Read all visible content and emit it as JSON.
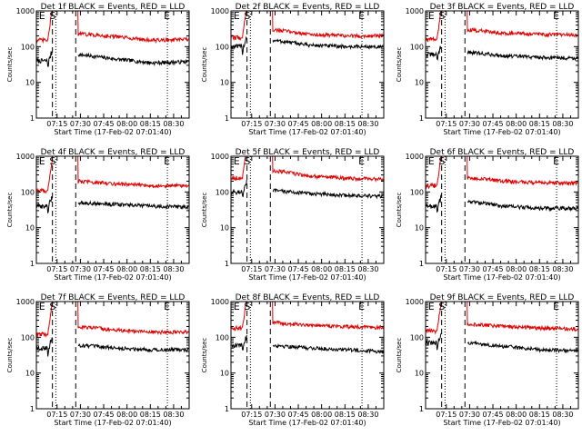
{
  "figure": {
    "x_title": "Start Time (17-Feb-02 07:01:40)",
    "y_title": "Counts/sec",
    "x_ticks": [
      "07:15",
      "07:30",
      "07:45",
      "08:00",
      "08:15",
      "08:30"
    ],
    "y_ticks": [
      "1",
      "10",
      "100",
      "1000"
    ],
    "marker_labels": [
      "E",
      "S",
      "E"
    ],
    "colors": {
      "events": "#000000",
      "lld": "#e00000"
    }
  },
  "chart_data": [
    {
      "type": "line",
      "title": "Det 1f BLACK = Events, RED = LLD",
      "xlabel": "Start Time (17-Feb-02 07:01:40)",
      "ylabel": "Counts/sec",
      "x_range": [
        "07:01:40",
        "08:40:00"
      ],
      "ylim": [
        1,
        1000
      ],
      "y_scale": "log",
      "markers": {
        "E1": "07:05",
        "S": "07:13",
        "dash1": "07:12",
        "dash2": "07:27",
        "E2": "08:26"
      },
      "series": [
        {
          "name": "Events",
          "level_before": 40,
          "level_after": [
            60,
            45,
            35,
            38
          ]
        },
        {
          "name": "LLD",
          "level_before": 150,
          "level_after": [
            230,
            190,
            150,
            160
          ]
        }
      ]
    },
    {
      "type": "line",
      "title": "Det 2f BLACK = Events, RED = LLD",
      "xlabel": "Start Time (17-Feb-02 07:01:40)",
      "ylabel": "Counts/sec",
      "x_range": [
        "07:01:40",
        "08:40:00"
      ],
      "ylim": [
        1,
        1000
      ],
      "y_scale": "log",
      "markers": {
        "E1": "07:05",
        "S": "07:13",
        "dash1": "07:12",
        "dash2": "07:27",
        "E2": "08:26"
      },
      "series": [
        {
          "name": "Events",
          "level_before": 100,
          "level_after": [
            150,
            110,
            100,
            100
          ]
        },
        {
          "name": "LLD",
          "level_before": 180,
          "level_after": [
            300,
            220,
            200,
            200
          ]
        }
      ]
    },
    {
      "type": "line",
      "title": "Det 3f BLACK = Events, RED = LLD",
      "xlabel": "Start Time (17-Feb-02 07:01:40)",
      "ylabel": "Counts/sec",
      "x_range": [
        "07:01:40",
        "08:40:00"
      ],
      "ylim": [
        1,
        1000
      ],
      "y_scale": "log",
      "markers": {
        "E1": "07:05",
        "S": "07:13",
        "dash1": "07:12",
        "dash2": "07:27",
        "E2": "08:26"
      },
      "series": [
        {
          "name": "Events",
          "level_before": 60,
          "level_after": [
            70,
            55,
            50,
            48
          ]
        },
        {
          "name": "LLD",
          "level_before": 160,
          "level_after": [
            300,
            240,
            220,
            210
          ]
        }
      ]
    },
    {
      "type": "line",
      "title": "Det 4f BLACK = Events, RED = LLD",
      "xlabel": "Start Time (17-Feb-02 07:01:40)",
      "ylabel": "Counts/sec",
      "x_range": [
        "07:01:40",
        "08:40:00"
      ],
      "ylim": [
        1,
        1000
      ],
      "y_scale": "log",
      "markers": {
        "E1": "07:05",
        "S": "07:13",
        "dash1": "07:12",
        "dash2": "07:27",
        "E2": "08:26"
      },
      "series": [
        {
          "name": "Events",
          "level_before": 40,
          "level_after": [
            50,
            45,
            40,
            38
          ]
        },
        {
          "name": "LLD",
          "level_before": 110,
          "level_after": [
            200,
            170,
            150,
            150
          ]
        }
      ]
    },
    {
      "type": "line",
      "title": "Det 5f BLACK = Events, RED = LLD",
      "xlabel": "Start Time (17-Feb-02 07:01:40)",
      "ylabel": "Counts/sec",
      "x_range": [
        "07:01:40",
        "08:40:00"
      ],
      "ylim": [
        1,
        1000
      ],
      "y_scale": "log",
      "markers": {
        "E1": "07:05",
        "S": "07:13",
        "dash1": "07:12",
        "dash2": "07:27",
        "E2": "08:26"
      },
      "series": [
        {
          "name": "Events",
          "level_before": 100,
          "level_after": [
            110,
            90,
            80,
            75
          ]
        },
        {
          "name": "LLD",
          "level_before": 250,
          "level_after": [
            400,
            280,
            240,
            230
          ]
        }
      ]
    },
    {
      "type": "line",
      "title": "Det 6f BLACK = Events, RED = LLD",
      "xlabel": "Start Time (17-Feb-02 07:01:40)",
      "ylabel": "Counts/sec",
      "x_range": [
        "07:01:40",
        "08:40:00"
      ],
      "ylim": [
        1,
        1000
      ],
      "y_scale": "log",
      "markers": {
        "E1": "07:05",
        "S": "07:13",
        "dash1": "07:12",
        "dash2": "07:27",
        "E2": "08:26"
      },
      "series": [
        {
          "name": "Events",
          "level_before": 40,
          "level_after": [
            55,
            40,
            35,
            35
          ]
        },
        {
          "name": "LLD",
          "level_before": 150,
          "level_after": [
            250,
            200,
            180,
            180
          ]
        }
      ]
    },
    {
      "type": "line",
      "title": "Det 7f BLACK = Events, RED = LLD",
      "xlabel": "Start Time (17-Feb-02 07:01:40)",
      "ylabel": "Counts/sec",
      "x_range": [
        "07:01:40",
        "08:40:00"
      ],
      "ylim": [
        1,
        1000
      ],
      "y_scale": "log",
      "markers": {
        "E1": "07:05",
        "S": "07:13",
        "dash1": "07:12",
        "dash2": "07:27",
        "E2": "08:26"
      },
      "series": [
        {
          "name": "Events",
          "level_before": 50,
          "level_after": [
            60,
            50,
            45,
            45
          ]
        },
        {
          "name": "LLD",
          "level_before": 120,
          "level_after": [
            200,
            160,
            140,
            140
          ]
        }
      ]
    },
    {
      "type": "line",
      "title": "Det 8f BLACK = Events, RED = LLD",
      "xlabel": "Start Time (17-Feb-02 07:01:40)",
      "ylabel": "Counts/sec",
      "x_range": [
        "07:01:40",
        "08:40:00"
      ],
      "ylim": [
        1,
        1000
      ],
      "y_scale": "log",
      "markers": {
        "E1": "07:05",
        "S": "07:13",
        "dash1": "07:12",
        "dash2": "07:27",
        "E2": "08:26"
      },
      "series": [
        {
          "name": "Events",
          "level_before": 60,
          "level_after": [
            60,
            50,
            45,
            40
          ]
        },
        {
          "name": "LLD",
          "level_before": 180,
          "level_after": [
            260,
            220,
            200,
            190
          ]
        }
      ]
    },
    {
      "type": "line",
      "title": "Det 9f BLACK = Events, RED = LLD",
      "xlabel": "Start Time (17-Feb-02 07:01:40)",
      "ylabel": "Counts/sec",
      "x_range": [
        "07:01:40",
        "08:40:00"
      ],
      "ylim": [
        1,
        1000
      ],
      "y_scale": "log",
      "markers": {
        "E1": "07:05",
        "S": "07:13",
        "dash1": "07:12",
        "dash2": "07:27",
        "E2": "08:26"
      },
      "series": [
        {
          "name": "Events",
          "level_before": 70,
          "level_after": [
            70,
            55,
            45,
            42
          ]
        },
        {
          "name": "LLD",
          "level_before": 150,
          "level_after": [
            240,
            200,
            180,
            170
          ]
        }
      ]
    }
  ]
}
